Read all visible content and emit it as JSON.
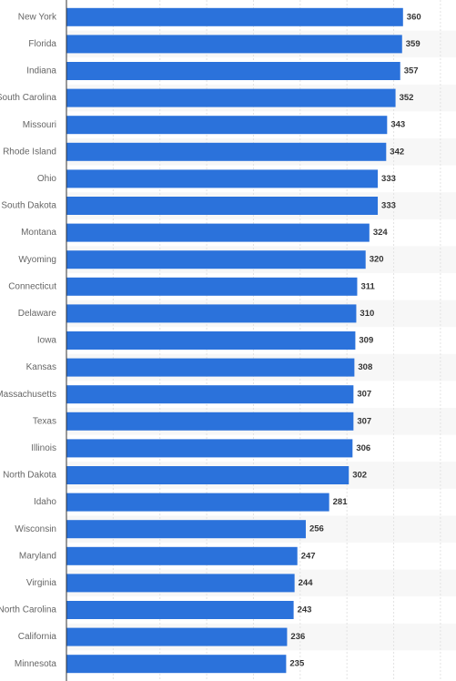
{
  "chart_data": {
    "type": "bar",
    "orientation": "horizontal",
    "categories": [
      "New York",
      "Florida",
      "Indiana",
      "South Carolina",
      "Missouri",
      "Rhode Island",
      "Ohio",
      "South Dakota",
      "Montana",
      "Wyoming",
      "Connecticut",
      "Delaware",
      "Iowa",
      "Kansas",
      "Massachusetts",
      "Texas",
      "Illinois",
      "North Dakota",
      "Idaho",
      "Wisconsin",
      "Maryland",
      "Virginia",
      "North Carolina",
      "California",
      "Minnesota"
    ],
    "values": [
      360,
      359,
      357,
      352,
      343,
      342,
      333,
      333,
      324,
      320,
      311,
      310,
      309,
      308,
      307,
      307,
      306,
      302,
      281,
      256,
      247,
      244,
      243,
      236,
      235
    ],
    "xlim": [
      0,
      400
    ],
    "grid": true,
    "data_labels": true,
    "colors": {
      "bar": "#2b72db",
      "band": "#f7f7f7",
      "grid": "#e3e3e3",
      "axis": "#333333"
    }
  }
}
